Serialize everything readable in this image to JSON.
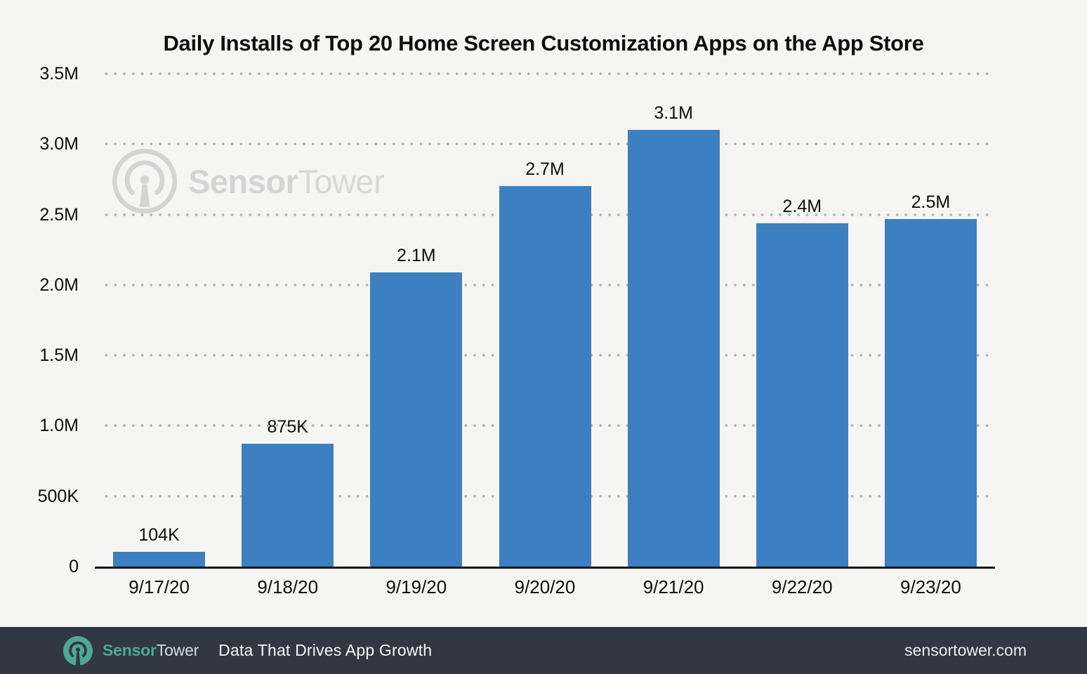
{
  "page": {
    "background": "#f5f5f4"
  },
  "chart_data": {
    "type": "bar",
    "title": "Daily Installs of Top 20 Home Screen Customization Apps on the App Store",
    "categories": [
      "9/17/20",
      "9/18/20",
      "9/19/20",
      "9/20/20",
      "9/21/20",
      "9/22/20",
      "9/23/20"
    ],
    "values": [
      104000,
      875000,
      2090000,
      2700000,
      3100000,
      2440000,
      2470000
    ],
    "data_labels": [
      "104K",
      "875K",
      "2.1M",
      "2.7M",
      "3.1M",
      "2.4M",
      "2.5M"
    ],
    "y_ticks": [
      "3.5M",
      "3.0M",
      "2.5M",
      "2.0M",
      "1.5M",
      "1.0M",
      "500K",
      "0"
    ],
    "ylim": [
      0,
      3500000
    ],
    "xlabel": "",
    "ylabel": "",
    "grid": "horizontal-dotted",
    "legend": "none",
    "bar_color": "#3d80c2"
  },
  "watermark": {
    "brand_bold": "Sensor",
    "brand_light": "Tower"
  },
  "footer": {
    "brand_bold": "Sensor",
    "brand_light": "Tower",
    "tagline": "Data That Drives App Growth",
    "url": "sensortower.com",
    "background": "#313844",
    "accent_teal": "#4fa796"
  }
}
